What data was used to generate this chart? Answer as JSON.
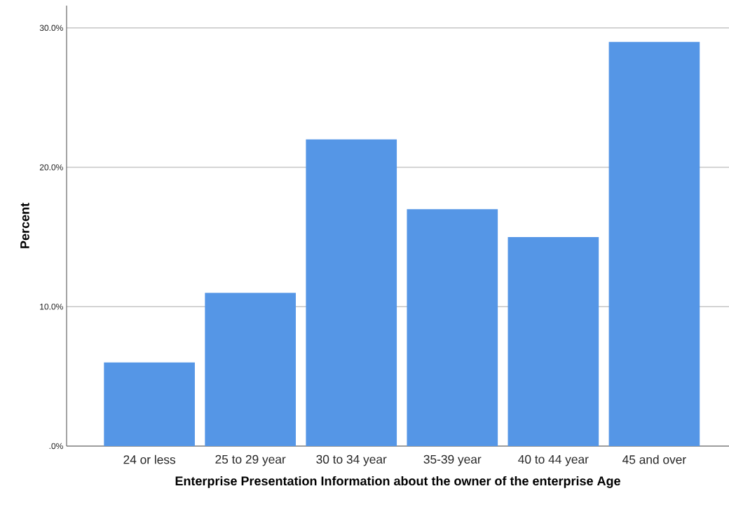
{
  "chart_data": {
    "type": "bar",
    "xlabel": "Enterprise Presentation Information about the owner of the enterprise Age",
    "ylabel": "Percent",
    "categories": [
      "24 or less",
      "25 to 29 year",
      "30 to 34 year",
      "35-39 year",
      "40 to 44 year",
      "45 and over"
    ],
    "values": [
      6.0,
      11.0,
      22.0,
      17.0,
      15.0,
      29.0
    ],
    "color": "#5596e6",
    "ylim": [
      0,
      31.6
    ],
    "yticks": [
      {
        "value": 0,
        "label": ".0%"
      },
      {
        "value": 10,
        "label": "10.0%"
      },
      {
        "value": 20,
        "label": "20.0%"
      },
      {
        "value": 30,
        "label": "30.0%"
      }
    ],
    "grid": "y"
  }
}
